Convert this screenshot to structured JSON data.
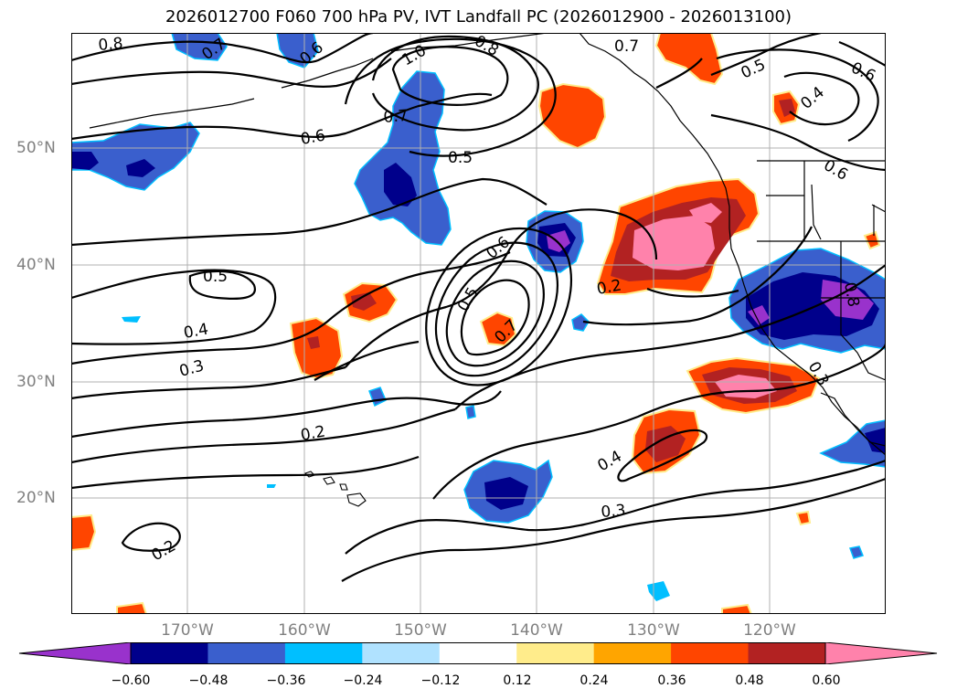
{
  "title": "2026012700 F060 700 hPa PV, IVT Landfall PC (2026012900 - 2026013100)",
  "lat_labels": [
    "50°N",
    "40°N",
    "30°N",
    "20°N"
  ],
  "lon_labels": [
    "170°W",
    "160°W",
    "150°W",
    "140°W",
    "130°W",
    "120°W"
  ],
  "colorbar": {
    "ticks": [
      "−0.60",
      "−0.48",
      "−0.36",
      "−0.24",
      "−0.12",
      "0.12",
      "0.24",
      "0.36",
      "0.48",
      "0.60"
    ],
    "colors": [
      "#9932CC",
      "#00008B",
      "#3A5FCD",
      "#00BFFF",
      "#B0E2FF",
      "#FFFFFF",
      "#FFEC8B",
      "#FFA500",
      "#FF4500",
      "#B22222",
      "#FF82AB"
    ],
    "extend": "both"
  },
  "contour_labels": [
    "0.8",
    "0.7",
    "0.6",
    "0.6",
    "1.0",
    "0.8",
    "0.7",
    "0.7",
    "0.5",
    "0.6",
    "0.4",
    "0.6",
    "0.5",
    "0.6",
    "0.8",
    "0.5",
    "0.2",
    "0.4",
    "0.5",
    "0.7",
    "0.3",
    "0.2",
    "0.3",
    "0.4",
    "0.3",
    "0.2"
  ],
  "grid": true
}
